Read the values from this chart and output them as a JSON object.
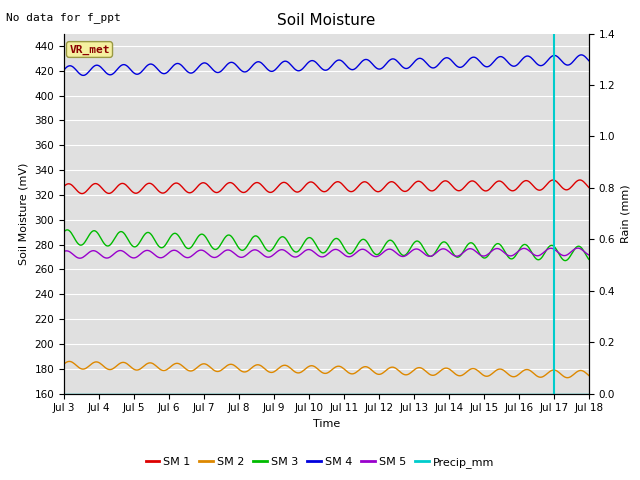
{
  "title": "Soil Moisture",
  "top_left_text": "No data for f_ppt",
  "box_label": "VR_met",
  "xlabel": "Time",
  "ylabel_left": "Soil Moisture (mV)",
  "ylabel_right": "Rain (mm)",
  "xlim": [
    0,
    15
  ],
  "ylim_left": [
    160,
    450
  ],
  "ylim_right": [
    0.0,
    1.4
  ],
  "x_ticks": [
    0,
    1,
    2,
    3,
    4,
    5,
    6,
    7,
    8,
    9,
    10,
    11,
    12,
    13,
    14,
    15
  ],
  "x_tick_labels": [
    "Jul 3",
    "Jul 4",
    "Jul 5",
    "Jul 6",
    "Jul 7",
    "Jul 8",
    "Jul 9",
    "Jul 10",
    "Jul 11",
    "Jul 12",
    "Jul 13",
    "Jul 14",
    "Jul 15",
    "Jul 16",
    "Jul 17",
    "Jul 18"
  ],
  "y_ticks_left": [
    160,
    180,
    200,
    220,
    240,
    260,
    280,
    300,
    320,
    340,
    360,
    380,
    400,
    420,
    440
  ],
  "y_ticks_right": [
    0.0,
    0.2,
    0.4,
    0.6,
    0.8,
    1.0,
    1.2,
    1.4
  ],
  "sm1_base": 325,
  "sm1_amp": 4,
  "sm1_trend": 0.2,
  "sm2_base": 183,
  "sm2_amp": 3,
  "sm2_trend": -0.5,
  "sm3_base": 286,
  "sm3_amp": 6,
  "sm3_trend": -0.9,
  "sm4_base": 420,
  "sm4_amp": 4,
  "sm4_trend": 0.6,
  "sm5_base": 272,
  "sm5_amp": 3,
  "sm5_trend": 0.15,
  "sm1_color": "#dd0000",
  "sm2_color": "#dd8800",
  "sm3_color": "#00bb00",
  "sm4_color": "#0000dd",
  "sm5_color": "#9900cc",
  "precip_color": "#00cccc",
  "vline_x": 14,
  "bg_color": "#e0e0e0",
  "fig_bg_color": "#ffffff",
  "grid_color": "#ffffff",
  "title_fontsize": 11,
  "label_fontsize": 8,
  "tick_fontsize": 7.5,
  "legend_fontsize": 8,
  "annot_fontsize": 8
}
